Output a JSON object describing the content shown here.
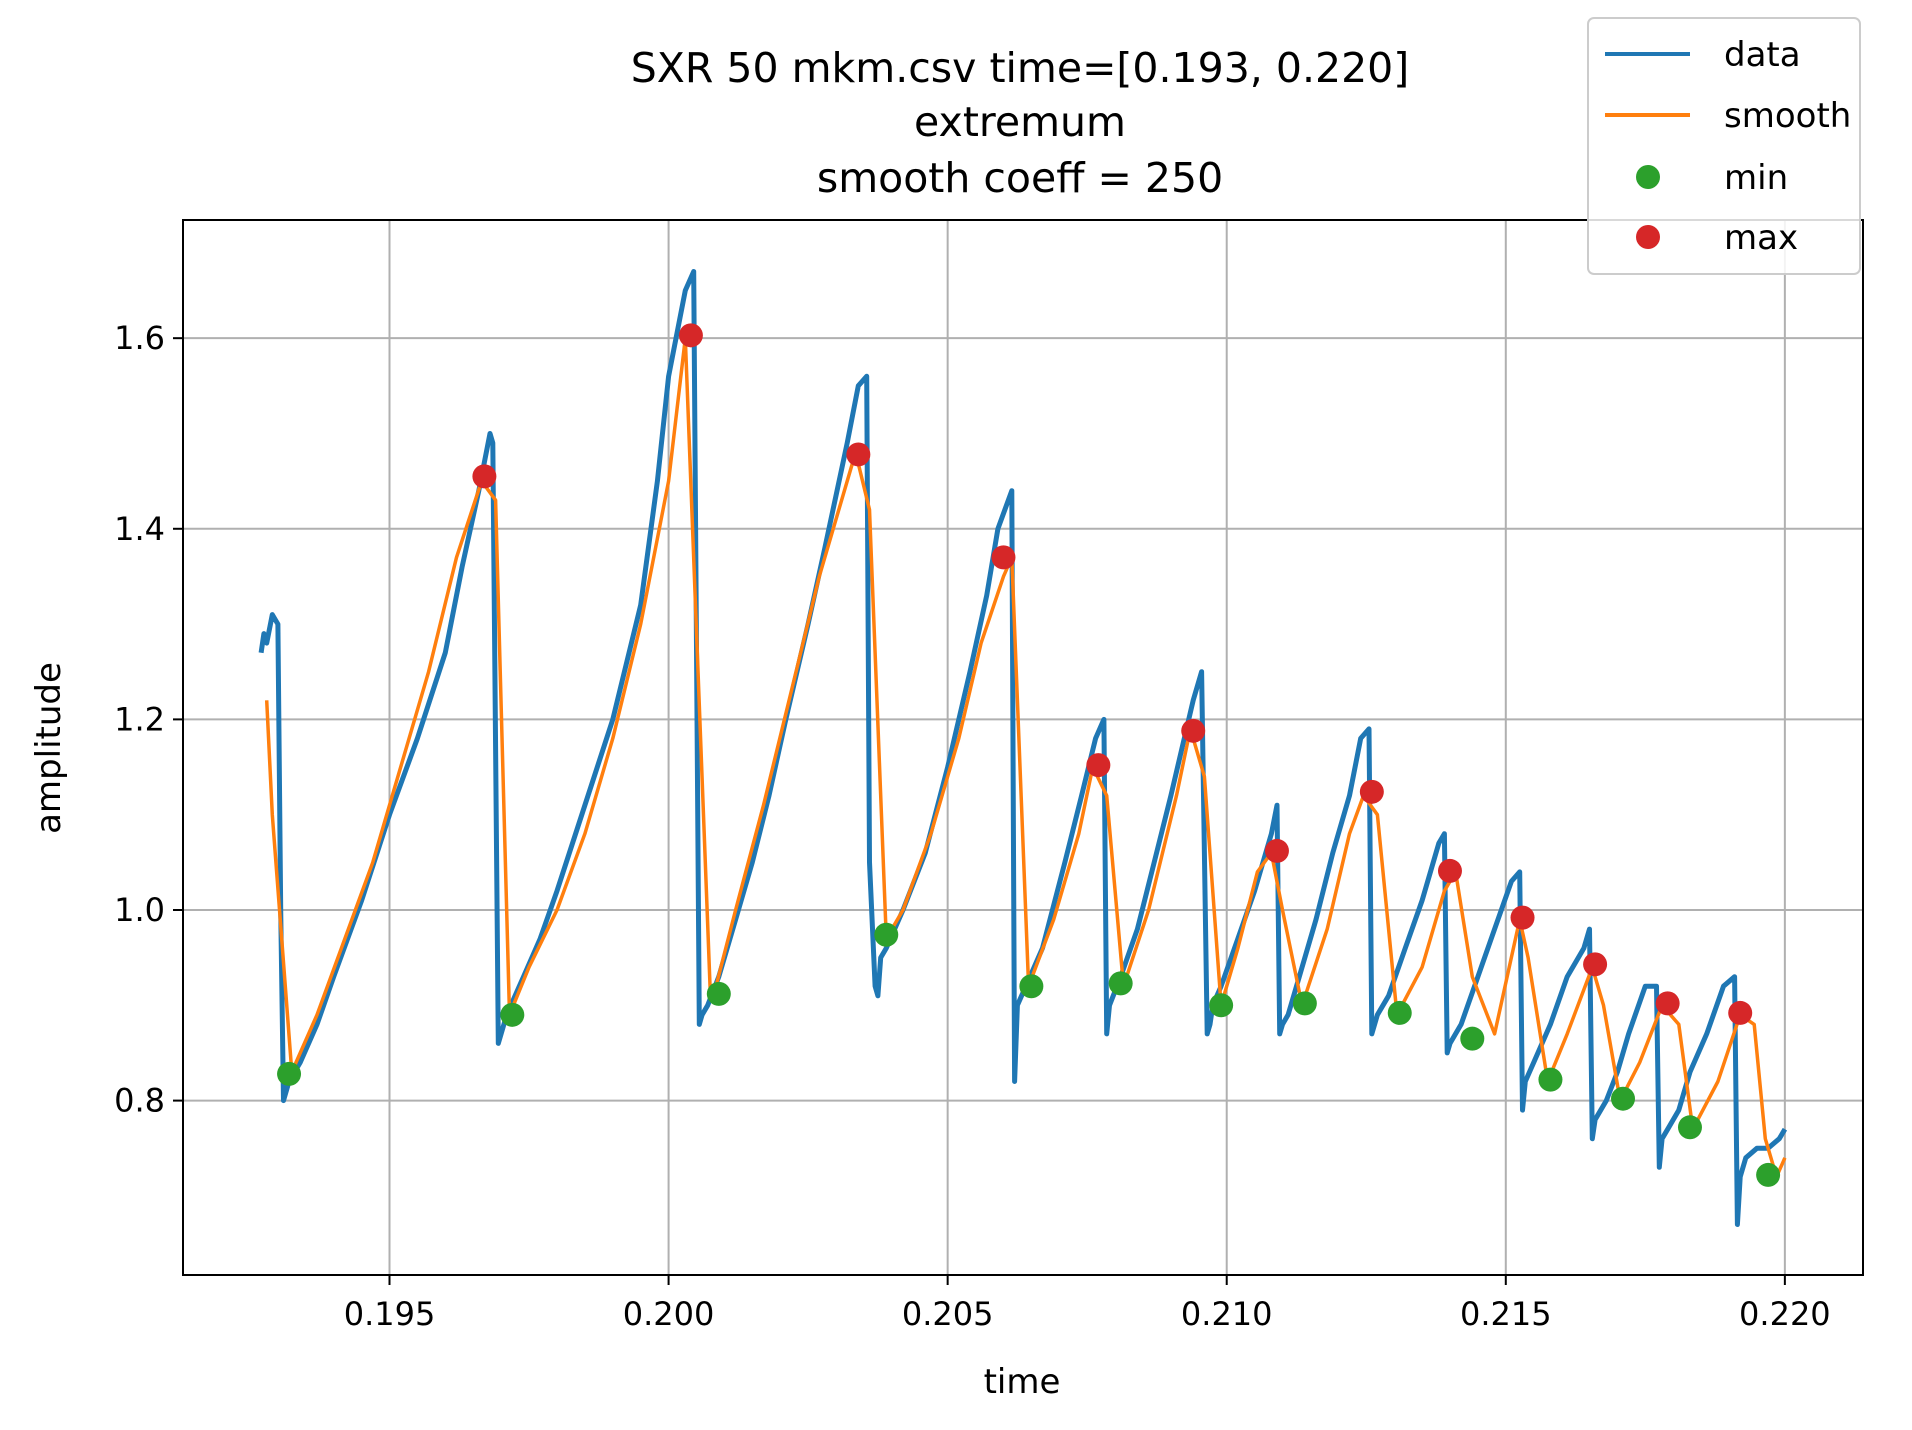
{
  "chart_data": {
    "type": "line",
    "title": [
      "SXR 50 mkm.csv time=[0.193, 0.220]",
      "extremum",
      "smooth coeff = 250"
    ],
    "xlabel": "time",
    "ylabel": "amplitude",
    "xlim": [
      0.1913,
      0.2214
    ],
    "ylim": [
      0.617,
      1.724
    ],
    "grid": true,
    "legend_position": "top-right",
    "x_ticks": [
      0.195,
      0.2,
      0.205,
      0.21,
      0.215,
      0.22
    ],
    "x_tick_labels": [
      "0.195",
      "0.200",
      "0.205",
      "0.210",
      "0.215",
      "0.220"
    ],
    "y_ticks": [
      0.8,
      1.0,
      1.2,
      1.4,
      1.6
    ],
    "y_tick_labels": [
      "0.8",
      "1.0",
      "1.2",
      "1.4",
      "1.6"
    ],
    "colors": {
      "data": "#1f77b4",
      "smooth": "#ff7f0e",
      "min": "#2ca02c",
      "max": "#d62728"
    },
    "series": [
      {
        "name": "data",
        "style": "line",
        "x": [
          0.1927,
          0.19275,
          0.1928,
          0.1929,
          0.193,
          0.19305,
          0.1931,
          0.1932,
          0.1934,
          0.1937,
          0.194,
          0.1945,
          0.195,
          0.1955,
          0.196,
          0.1963,
          0.1966,
          0.1968,
          0.19685,
          0.19695,
          0.197,
          0.1971,
          0.1974,
          0.1977,
          0.198,
          0.1985,
          0.199,
          0.1995,
          0.1998,
          0.2,
          0.2003,
          0.20045,
          0.20055,
          0.2006,
          0.2007,
          0.2009,
          0.2012,
          0.2015,
          0.2018,
          0.2021,
          0.2025,
          0.2028,
          0.2032,
          0.2034,
          0.20355,
          0.2036,
          0.2037,
          0.20375,
          0.2038,
          0.2039,
          0.2042,
          0.2046,
          0.205,
          0.2054,
          0.2057,
          0.2059,
          0.20615,
          0.2062,
          0.20625,
          0.2064,
          0.2067,
          0.2071,
          0.2074,
          0.20765,
          0.2078,
          0.20785,
          0.2079,
          0.2081,
          0.2084,
          0.2087,
          0.209,
          0.2094,
          0.20955,
          0.20965,
          0.2097,
          0.20975,
          0.2099,
          0.2102,
          0.2105,
          0.2108,
          0.2109,
          0.21095,
          0.211,
          0.2111,
          0.2113,
          0.2116,
          0.2119,
          0.2122,
          0.2124,
          0.21255,
          0.2126,
          0.21265,
          0.2127,
          0.2129,
          0.2132,
          0.2135,
          0.2138,
          0.2139,
          0.21395,
          0.214,
          0.2142,
          0.2145,
          0.2148,
          0.2151,
          0.21525,
          0.2153,
          0.21535,
          0.2155,
          0.2158,
          0.2161,
          0.2164,
          0.2165,
          0.21655,
          0.2166,
          0.2168,
          0.217,
          0.2172,
          0.2175,
          0.2177,
          0.21775,
          0.2178,
          0.2179,
          0.2181,
          0.2183,
          0.2186,
          0.2189,
          0.2191,
          0.21915,
          0.2192,
          0.2193,
          0.2195,
          0.2197,
          0.2199,
          0.22
        ],
        "y": [
          1.27,
          1.29,
          1.28,
          1.31,
          1.3,
          1.0,
          0.8,
          0.82,
          0.84,
          0.88,
          0.93,
          1.01,
          1.1,
          1.18,
          1.27,
          1.36,
          1.44,
          1.5,
          1.49,
          0.86,
          0.87,
          0.89,
          0.93,
          0.97,
          1.02,
          1.11,
          1.2,
          1.32,
          1.45,
          1.56,
          1.65,
          1.67,
          0.88,
          0.89,
          0.9,
          0.93,
          0.99,
          1.05,
          1.12,
          1.2,
          1.3,
          1.38,
          1.49,
          1.55,
          1.56,
          1.05,
          0.92,
          0.91,
          0.95,
          0.96,
          1.0,
          1.06,
          1.15,
          1.25,
          1.33,
          1.4,
          1.44,
          0.82,
          0.9,
          0.92,
          0.96,
          1.05,
          1.12,
          1.18,
          1.2,
          0.87,
          0.9,
          0.93,
          0.98,
          1.05,
          1.12,
          1.22,
          1.25,
          0.87,
          0.88,
          0.9,
          0.92,
          0.97,
          1.02,
          1.08,
          1.11,
          0.87,
          0.88,
          0.89,
          0.93,
          0.99,
          1.06,
          1.12,
          1.18,
          1.19,
          0.87,
          0.88,
          0.89,
          0.91,
          0.96,
          1.01,
          1.07,
          1.08,
          0.85,
          0.86,
          0.88,
          0.93,
          0.98,
          1.03,
          1.04,
          0.79,
          0.82,
          0.84,
          0.88,
          0.93,
          0.96,
          0.98,
          0.76,
          0.78,
          0.8,
          0.83,
          0.87,
          0.92,
          0.92,
          0.73,
          0.76,
          0.77,
          0.79,
          0.83,
          0.87,
          0.92,
          0.93,
          0.67,
          0.72,
          0.74,
          0.75,
          0.75,
          0.76,
          0.77
        ]
      },
      {
        "name": "smooth",
        "style": "line",
        "x": [
          0.1928,
          0.1929,
          0.19325,
          0.1937,
          0.1942,
          0.1947,
          0.1952,
          0.1957,
          0.1962,
          0.19665,
          0.1969,
          0.19715,
          0.1975,
          0.198,
          0.1985,
          0.199,
          0.1995,
          0.2,
          0.2003,
          0.20075,
          0.20085,
          0.2012,
          0.2017,
          0.2022,
          0.2027,
          0.2032,
          0.20335,
          0.2036,
          0.2039,
          0.2042,
          0.2047,
          0.2052,
          0.2056,
          0.206,
          0.20615,
          0.20645,
          0.2069,
          0.20735,
          0.2076,
          0.20785,
          0.20815,
          0.2086,
          0.2091,
          0.20935,
          0.2096,
          0.2099,
          0.2102,
          0.21055,
          0.2108,
          0.211,
          0.21135,
          0.2118,
          0.2122,
          0.21245,
          0.2127,
          0.21305,
          0.2135,
          0.2139,
          0.2141,
          0.2144,
          0.2148,
          0.21525,
          0.2154,
          0.21575,
          0.2161,
          0.21655,
          0.21675,
          0.21705,
          0.2174,
          0.2178,
          0.2181,
          0.21835,
          0.2188,
          0.2192,
          0.21945,
          0.21965,
          0.21985,
          0.22
        ],
        "y": [
          1.22,
          1.1,
          0.83,
          0.89,
          0.97,
          1.05,
          1.15,
          1.25,
          1.37,
          1.45,
          1.43,
          0.89,
          0.94,
          1.0,
          1.08,
          1.18,
          1.3,
          1.45,
          1.6,
          0.91,
          0.92,
          1.0,
          1.11,
          1.23,
          1.35,
          1.45,
          1.48,
          1.42,
          0.97,
          1.0,
          1.08,
          1.18,
          1.28,
          1.35,
          1.37,
          0.92,
          0.99,
          1.08,
          1.15,
          1.12,
          0.92,
          1.0,
          1.12,
          1.19,
          1.14,
          0.9,
          0.96,
          1.04,
          1.06,
          1.0,
          0.9,
          0.98,
          1.08,
          1.12,
          1.1,
          0.89,
          0.94,
          1.02,
          1.04,
          0.93,
          0.87,
          0.99,
          0.95,
          0.82,
          0.87,
          0.94,
          0.9,
          0.8,
          0.84,
          0.9,
          0.88,
          0.77,
          0.82,
          0.89,
          0.88,
          0.76,
          0.72,
          0.74
        ]
      },
      {
        "name": "min",
        "style": "marker",
        "x": [
          0.1932,
          0.1972,
          0.2009,
          0.2039,
          0.2065,
          0.2081,
          0.2099,
          0.2114,
          0.2131,
          0.2144,
          0.2158,
          0.2171,
          0.2183,
          0.2197
        ],
        "y": [
          0.828,
          0.89,
          0.912,
          0.974,
          0.92,
          0.923,
          0.9,
          0.902,
          0.892,
          0.865,
          0.822,
          0.802,
          0.772,
          0.722
        ]
      },
      {
        "name": "max",
        "style": "marker",
        "x": [
          0.1967,
          0.2004,
          0.2034,
          0.206,
          0.2077,
          0.2094,
          0.2109,
          0.2126,
          0.214,
          0.2153,
          0.2166,
          0.2179,
          0.2192
        ],
        "y": [
          1.455,
          1.603,
          1.478,
          1.37,
          1.152,
          1.188,
          1.062,
          1.124,
          1.041,
          0.992,
          0.943,
          0.902,
          0.892
        ]
      }
    ]
  }
}
